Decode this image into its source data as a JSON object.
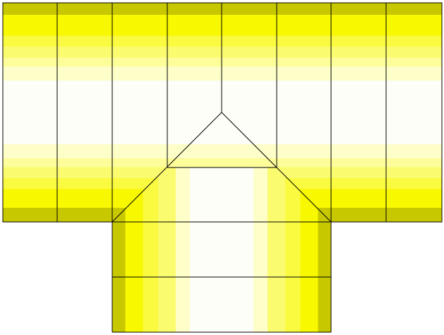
{
  "diagram": {
    "kind": "tee-pipe-surface-shading",
    "colors": {
      "edge_dark": "#c8c800",
      "bright": "#f8f800",
      "mid": "#fbfb66",
      "soft": "#fdfd9a",
      "pale": "#fefec8",
      "highlight": "#fefef8",
      "outline": "#000000",
      "background": "#ffffff"
    },
    "horizontal_pipe": {
      "columns": 8,
      "shading": "top-to-bottom"
    },
    "vertical_pipe": {
      "rows": 2,
      "shading": "left-to-right"
    }
  }
}
